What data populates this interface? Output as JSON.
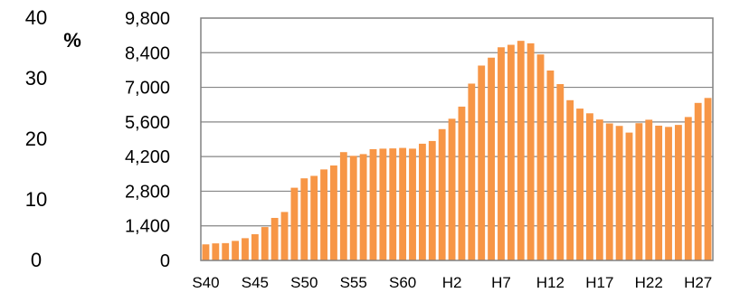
{
  "chart_data": {
    "type": "bar",
    "title": "",
    "bar_color": "#F79646",
    "grid": true,
    "y_axis_left": {
      "unit": "%",
      "ylim": [
        0,
        40
      ],
      "ticks": [
        "0",
        "10",
        "20",
        "30",
        "40"
      ]
    },
    "y_axis_right": {
      "ylim": [
        0,
        9800
      ],
      "ticks": [
        "0",
        "1,400",
        "2,800",
        "4,200",
        "5,600",
        "7,000",
        "8,400",
        "9,800"
      ]
    },
    "x_tick_labels": [
      "S40",
      "S45",
      "S50",
      "S55",
      "S60",
      "H2",
      "H7",
      "H12",
      "H17",
      "H22",
      "H27"
    ],
    "categories": [
      "S40",
      "S41",
      "S42",
      "S43",
      "S44",
      "S45",
      "S46",
      "S47",
      "S48",
      "S49",
      "S50",
      "S51",
      "S52",
      "S53",
      "S54",
      "S55",
      "S56",
      "S57",
      "S58",
      "S59",
      "S60",
      "S61",
      "S62",
      "S63",
      "H1",
      "H2",
      "H3",
      "H4",
      "H5",
      "H6",
      "H7",
      "H8",
      "H9",
      "H10",
      "H11",
      "H12",
      "H13",
      "H14",
      "H15",
      "H16",
      "H17",
      "H18",
      "H19",
      "H20",
      "H21",
      "H22",
      "H23",
      "H24",
      "H25",
      "H26",
      "H27",
      "H28"
    ],
    "values": [
      650,
      690,
      700,
      790,
      900,
      1060,
      1350,
      1720,
      1960,
      2940,
      3320,
      3420,
      3680,
      3840,
      4380,
      4230,
      4300,
      4500,
      4520,
      4530,
      4550,
      4520,
      4720,
      4830,
      5310,
      5730,
      6220,
      7150,
      7880,
      8200,
      8620,
      8720,
      8880,
      8780,
      8330,
      7680,
      7130,
      6480,
      6140,
      5950,
      5700,
      5540,
      5440,
      5170,
      5550,
      5690,
      5450,
      5400,
      5480,
      5800,
      6370,
      6570
    ]
  }
}
